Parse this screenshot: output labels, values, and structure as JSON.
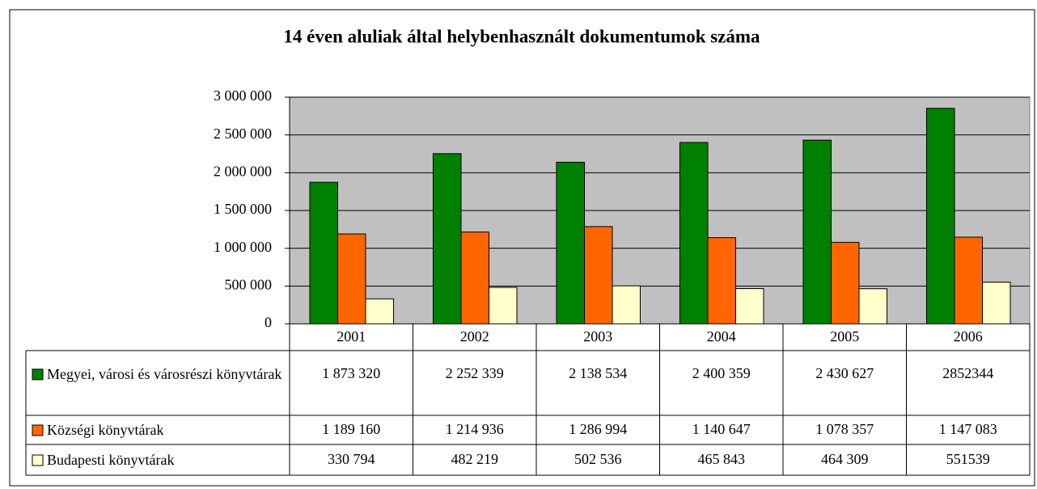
{
  "chart_data": {
    "type": "bar",
    "title": "14 éven aluliak által helybenhasznált dokumentumok száma",
    "categories": [
      "2001",
      "2002",
      "2003",
      "2004",
      "2005",
      "2006"
    ],
    "series": [
      {
        "name": "Megyei, városi és városrészi könyvtárak",
        "color": "#008000",
        "values": [
          1873320,
          2252339,
          2138534,
          2400359,
          2430627,
          2852344
        ],
        "value_labels": [
          "1 873 320",
          "2 252 339",
          "2 138 534",
          "2 400 359",
          "2 430 627",
          "2852344"
        ]
      },
      {
        "name": "Községi könyvtárak",
        "color": "#ff6600",
        "values": [
          1189160,
          1214936,
          1286994,
          1140647,
          1078357,
          1147083
        ],
        "value_labels": [
          "1 189 160",
          "1 214 936",
          "1 286 994",
          "1 140 647",
          "1 078 357",
          "1 147 083"
        ]
      },
      {
        "name": "Budapesti könyvtárak",
        "color": "#ffffcc",
        "values": [
          330794,
          482219,
          502536,
          465843,
          464309,
          551539
        ],
        "value_labels": [
          "330 794",
          "482 219",
          "502 536",
          "465 843",
          "464 309",
          "551539"
        ]
      }
    ],
    "ylim": [
      0,
      3000000
    ],
    "yticks": [
      0,
      {
        "value": 500000,
        "label": "500 000"
      },
      {
        "value": 1000000,
        "label": "1 000 000"
      },
      {
        "value": 1500000,
        "label": "1 500 000"
      },
      {
        "value": 2000000,
        "label": "2 000 000"
      },
      {
        "value": 2500000,
        "label": "2 500 000"
      },
      {
        "value": 3000000,
        "label": "3 000 000"
      }
    ],
    "grid": true,
    "plot_background": "#c0c0c0"
  }
}
